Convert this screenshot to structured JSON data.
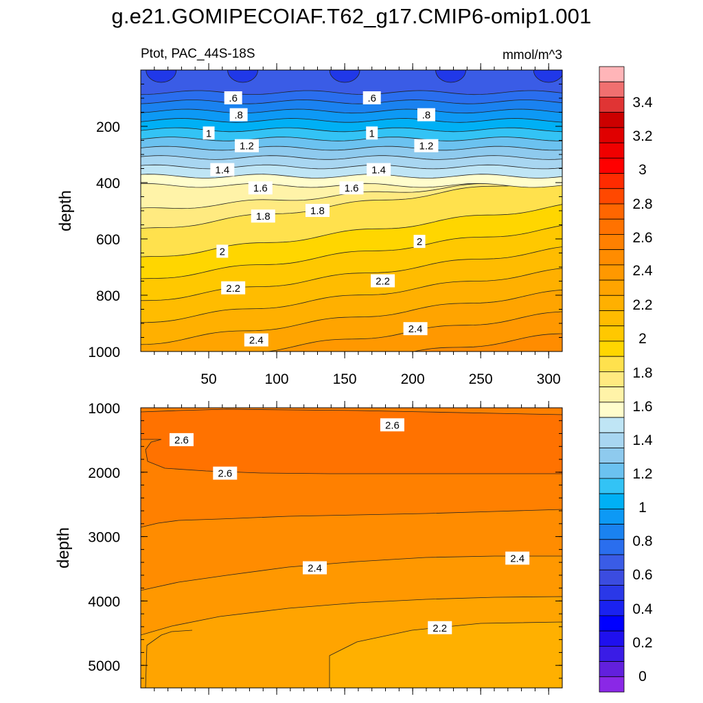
{
  "title": "g.e21.GOMIPECOIAF.T62_g17.CMIP6-omip1.001",
  "variable_label": "Ptot, PAC_44S-18S",
  "units": "mmol/m^3",
  "chart_data": [
    {
      "type": "heatmap",
      "name": "upper-panel",
      "subtitle": "Ptot, PAC_44S-18S",
      "ylabel": "depth",
      "xlabel": "",
      "xlim": [
        0,
        310
      ],
      "ylim": [
        1000,
        0
      ],
      "x_ticks": [
        "50",
        "100",
        "150",
        "200",
        "250",
        "300"
      ],
      "y_ticks": [
        "200",
        "400",
        "600",
        "800",
        "1000"
      ],
      "contour_interval": 0.1,
      "contour_labels": [
        {
          "text": ".6",
          "x": 68,
          "depth": 100
        },
        {
          "text": ".6",
          "x": 170,
          "depth": 100
        },
        {
          "text": ".8",
          "x": 72,
          "depth": 160
        },
        {
          "text": ".8",
          "x": 210,
          "depth": 160
        },
        {
          "text": "1",
          "x": 50,
          "depth": 225
        },
        {
          "text": "1",
          "x": 170,
          "depth": 225
        },
        {
          "text": "1.2",
          "x": 78,
          "depth": 270
        },
        {
          "text": "1.2",
          "x": 210,
          "depth": 270
        },
        {
          "text": "1.4",
          "x": 60,
          "depth": 355
        },
        {
          "text": "1.4",
          "x": 175,
          "depth": 355
        },
        {
          "text": "1.6",
          "x": 88,
          "depth": 420
        },
        {
          "text": "1.6",
          "x": 155,
          "depth": 420
        },
        {
          "text": "1.8",
          "x": 90,
          "depth": 520
        },
        {
          "text": "1.8",
          "x": 130,
          "depth": 500
        },
        {
          "text": "2",
          "x": 60,
          "depth": 645
        },
        {
          "text": "2",
          "x": 205,
          "depth": 610
        },
        {
          "text": "2.2",
          "x": 68,
          "depth": 775
        },
        {
          "text": "2.2",
          "x": 178,
          "depth": 750
        },
        {
          "text": "2.4",
          "x": 85,
          "depth": 960
        },
        {
          "text": "2.4",
          "x": 202,
          "depth": 920
        }
      ]
    },
    {
      "type": "heatmap",
      "name": "lower-panel",
      "ylabel": "depth",
      "xlabel": "",
      "xlim": [
        0,
        310
      ],
      "ylim": [
        5350,
        1000
      ],
      "y_ticks": [
        "1000",
        "2000",
        "3000",
        "4000",
        "5000"
      ],
      "contour_labels": [
        {
          "text": "2.6",
          "x": 30,
          "depth": 1500
        },
        {
          "text": "2.6",
          "x": 62,
          "depth": 2020
        },
        {
          "text": "2.6",
          "x": 185,
          "depth": 1270
        },
        {
          "text": "2.4",
          "x": 128,
          "depth": 3490
        },
        {
          "text": "2.4",
          "x": 277,
          "depth": 3340
        },
        {
          "text": "2.2",
          "x": 220,
          "depth": 4420
        }
      ]
    },
    {
      "type": "colorbar",
      "name": "colorbar",
      "labels": [
        "3.4",
        "3.2",
        "3",
        "2.8",
        "2.6",
        "2.4",
        "2.2",
        "2",
        "1.8",
        "1.6",
        "1.4",
        "1.2",
        "1",
        "0.8",
        "0.6",
        "0.4",
        "0.2",
        "0"
      ],
      "colors": [
        "#FFB5B8",
        "#F07070",
        "#E03434",
        "#CC0000",
        "#E00000",
        "#F00000",
        "#FF0000",
        "#FF2B00",
        "#FF4800",
        "#FF6600",
        "#FF7200",
        "#FF8000",
        "#FF8C00",
        "#FF9800",
        "#FFA400",
        "#FFB000",
        "#FFBC00",
        "#FFC800",
        "#FFD600",
        "#FFE14D",
        "#FFEA80",
        "#FFF3A8",
        "#FFFDCC",
        "#BFE5F5",
        "#A8D6F1",
        "#8ECAEE",
        "#6BC2F0",
        "#33C3F5",
        "#00B0F5",
        "#0D99F5",
        "#1A82F0",
        "#2A6EEE",
        "#3A5CE6",
        "#3B4CE0",
        "#2A38E8",
        "#1A22F0",
        "#0000FF",
        "#1F10EE",
        "#3A1CE6",
        "#6220DD",
        "#8A28E6"
      ]
    }
  ]
}
